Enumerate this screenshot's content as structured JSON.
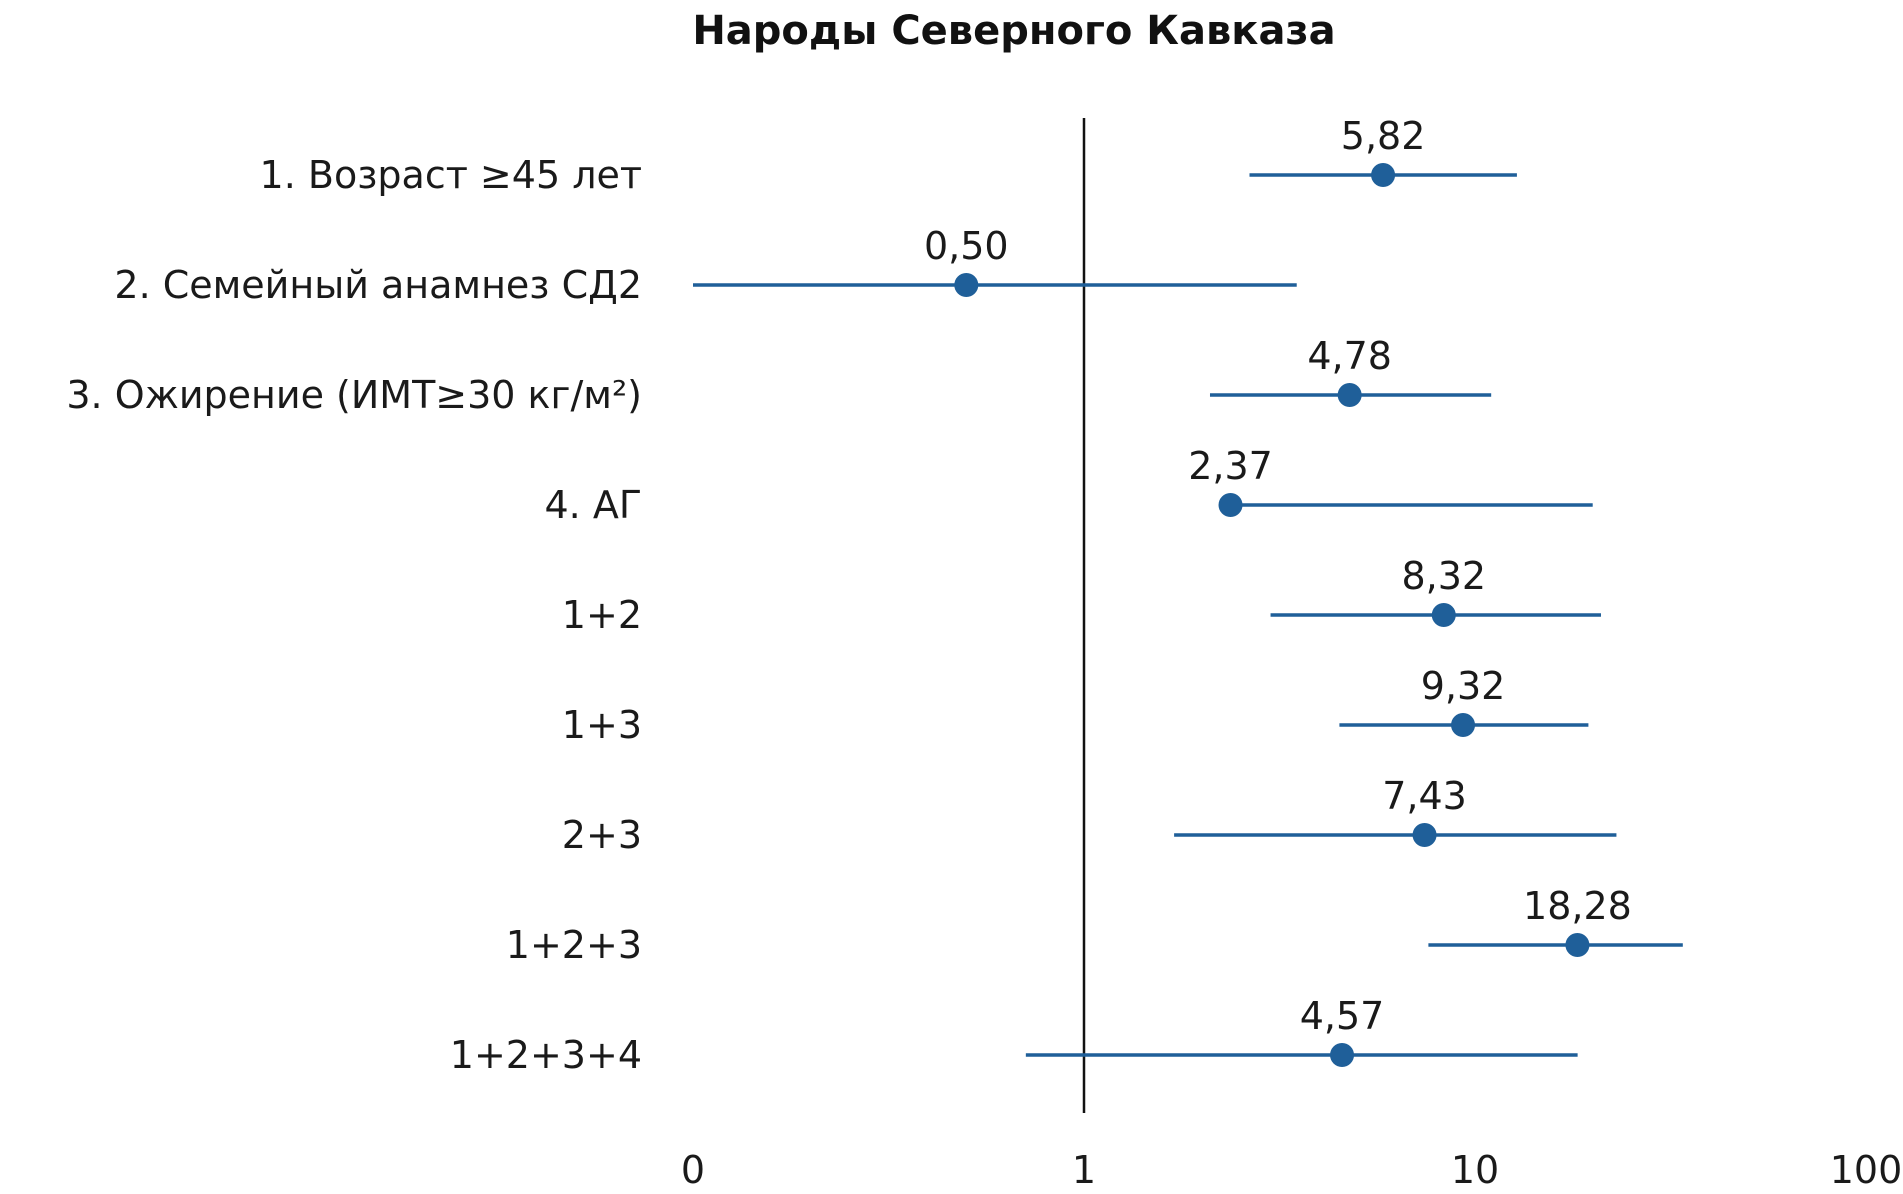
{
  "chart_data": {
    "type": "scatter",
    "subtype": "forest-plot",
    "title": "Народы Северного Кавказа",
    "xscale": "log",
    "xlim": [
      0.1,
      100
    ],
    "x_ticks": [
      {
        "value": 0.1,
        "label": "0"
      },
      {
        "value": 1,
        "label": "1"
      },
      {
        "value": 10,
        "label": "10"
      },
      {
        "value": 100,
        "label": "100"
      }
    ],
    "reference_line": 1,
    "grid": false,
    "colors": {
      "series": "#1f5f99",
      "reference_line": "#111111",
      "text": "#1a1a1a"
    },
    "categories": [
      "1. Возраст ≥45 лет",
      "2. Семейный анамнез СД2",
      "3. Ожирение (ИМТ≥30 кг/м²)",
      "4. АГ",
      "1+2",
      "1+3",
      "2+3",
      "1+2+3",
      "1+2+3+4"
    ],
    "points": [
      {
        "value": 5.82,
        "label": "5,82",
        "ci_low": 2.65,
        "ci_high": 12.8
      },
      {
        "value": 0.5,
        "label": "0,50",
        "ci_low": 0.1,
        "ci_high": 3.5
      },
      {
        "value": 4.78,
        "label": "4,78",
        "ci_low": 2.1,
        "ci_high": 11.0
      },
      {
        "value": 2.37,
        "label": "2,37",
        "ci_low": 2.37,
        "ci_high": 20.0
      },
      {
        "value": 8.32,
        "label": "8,32",
        "ci_low": 3.0,
        "ci_high": 21.0
      },
      {
        "value": 9.32,
        "label": "9,32",
        "ci_low": 4.5,
        "ci_high": 19.5
      },
      {
        "value": 7.43,
        "label": "7,43",
        "ci_low": 1.7,
        "ci_high": 23.0
      },
      {
        "value": 18.28,
        "label": "18,28",
        "ci_low": 7.6,
        "ci_high": 34.0
      },
      {
        "value": 4.57,
        "label": "4,57",
        "ci_low": 0.71,
        "ci_high": 18.3
      }
    ]
  }
}
